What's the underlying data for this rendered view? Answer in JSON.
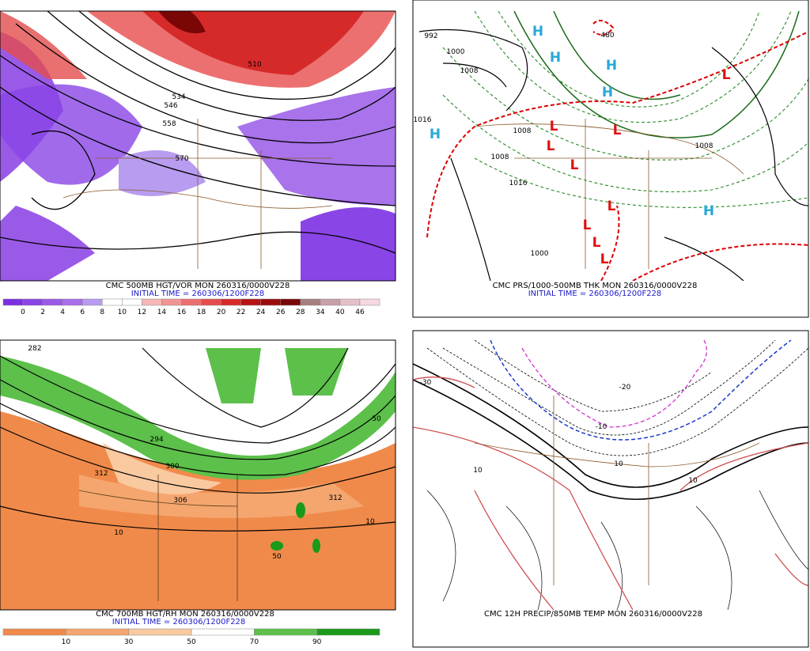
{
  "panels": [
    {
      "caption": "CMC 500MB HGT/VOR MON 260316/0000V228",
      "initial": "INITIAL TIME = 260306/1200F228",
      "colorbar": {
        "labels": [
          0,
          2,
          4,
          6,
          8,
          10,
          12,
          14,
          16,
          18,
          20,
          22,
          24,
          26,
          28,
          34,
          40,
          46
        ],
        "colors": [
          "#7b2fe0",
          "#8a45e6",
          "#9a5ae8",
          "#a86fea",
          "#b79cf0",
          "#ffffff",
          "#ffffff",
          "#f7b7b7",
          "#f29494",
          "#ec7070",
          "#e44c4c",
          "#d62a2a",
          "#b81414",
          "#9a0c0c",
          "#7a0606",
          "#a58080",
          "#c8a0a8",
          "#e4c0c8",
          "#f6d8e0"
        ]
      },
      "contour_labels": [
        "510",
        "534",
        "546",
        "558",
        "570"
      ]
    },
    {
      "caption": "CMC PRS/1000-500MB THK MON 260316/0000V228",
      "initial": "INITIAL TIME = 260306/1200F228",
      "contour_labels": [
        "992",
        "1000",
        "1008",
        "1016",
        "1008",
        "1008",
        "1016",
        "1000",
        "1008",
        "480"
      ],
      "highs": [
        "H",
        "H",
        "H",
        "H",
        "H",
        "H"
      ],
      "lows": [
        "L",
        "L",
        "L",
        "L",
        "L",
        "L",
        "L",
        "L",
        "L"
      ]
    },
    {
      "caption": "CMC 700MB HGT/RH MON 260316/0000V228",
      "initial": "INITIAL TIME = 260306/1200F228",
      "colorbar": {
        "labels": [
          10,
          30,
          50,
          70,
          90
        ],
        "colors": [
          "#f08a4a",
          "#f4a66e",
          "#f9c9a0",
          "#ffffff",
          "#5cc04a",
          "#1a9a1a"
        ]
      },
      "contour_labels": [
        "282",
        "294",
        "300",
        "306",
        "312",
        "312",
        "10",
        "10",
        "50",
        "50"
      ]
    },
    {
      "caption": "CMC 12H PRECIP/850MB TEMP MON 260316/0000V228",
      "contour_labels": [
        "-30",
        "-20",
        "-10",
        "10",
        "10",
        "10"
      ]
    }
  ]
}
